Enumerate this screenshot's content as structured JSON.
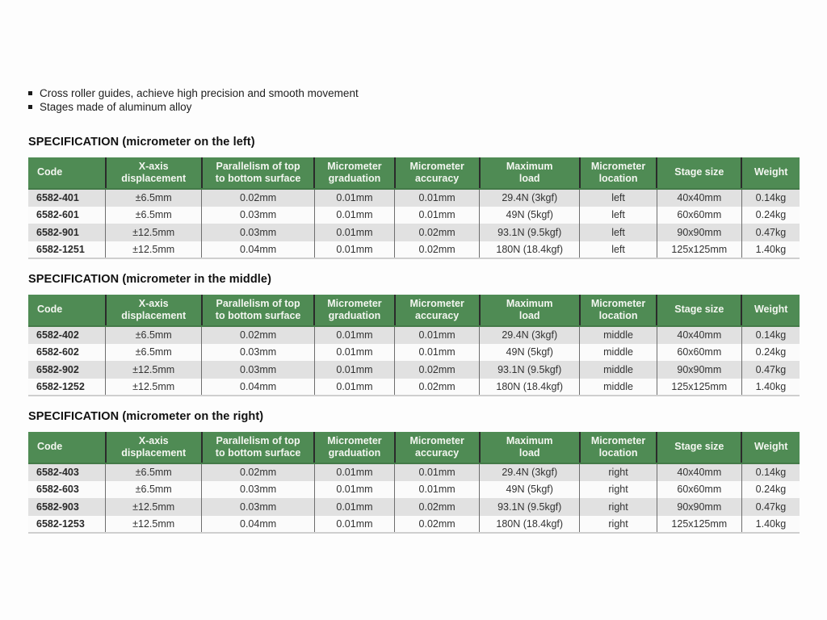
{
  "bullets": [
    "Cross roller guides, achieve high precision and smooth movement",
    "Stages made of aluminum alloy"
  ],
  "table_headers": [
    "Code",
    "X-axis\ndisplacement",
    "Parallelism of top\nto bottom surface",
    "Micrometer\ngraduation",
    "Micrometer\naccuracy",
    "Maximum\nload",
    "Micrometer\nlocation",
    "Stage size",
    "Weight"
  ],
  "colors": {
    "header_green": "#4f8b54",
    "header_separator": "#2b2b2b",
    "row_stripe_gray": "#e1e1e1",
    "row_white": "#fbfbfb",
    "cell_separator": "#6e6e6e"
  },
  "sections": [
    {
      "title": "SPECIFICATION (micrometer on the left)",
      "rows": [
        [
          "6582-401",
          "±6.5mm",
          "0.02mm",
          "0.01mm",
          "0.01mm",
          "29.4N (3kgf)",
          "left",
          "40x40mm",
          "0.14kg"
        ],
        [
          "6582-601",
          "±6.5mm",
          "0.03mm",
          "0.01mm",
          "0.01mm",
          "49N (5kgf)",
          "left",
          "60x60mm",
          "0.24kg"
        ],
        [
          "6582-901",
          "±12.5mm",
          "0.03mm",
          "0.01mm",
          "0.02mm",
          "93.1N (9.5kgf)",
          "left",
          "90x90mm",
          "0.47kg"
        ],
        [
          "6582-1251",
          "±12.5mm",
          "0.04mm",
          "0.01mm",
          "0.02mm",
          "180N (18.4kgf)",
          "left",
          "125x125mm",
          "1.40kg"
        ]
      ]
    },
    {
      "title": "SPECIFICATION (micrometer in the middle)",
      "rows": [
        [
          "6582-402",
          "±6.5mm",
          "0.02mm",
          "0.01mm",
          "0.01mm",
          "29.4N (3kgf)",
          "middle",
          "40x40mm",
          "0.14kg"
        ],
        [
          "6582-602",
          "±6.5mm",
          "0.03mm",
          "0.01mm",
          "0.01mm",
          "49N (5kgf)",
          "middle",
          "60x60mm",
          "0.24kg"
        ],
        [
          "6582-902",
          "±12.5mm",
          "0.03mm",
          "0.01mm",
          "0.02mm",
          "93.1N (9.5kgf)",
          "middle",
          "90x90mm",
          "0.47kg"
        ],
        [
          "6582-1252",
          "±12.5mm",
          "0.04mm",
          "0.01mm",
          "0.02mm",
          "180N (18.4kgf)",
          "middle",
          "125x125mm",
          "1.40kg"
        ]
      ]
    },
    {
      "title": "SPECIFICATION (micrometer on the right)",
      "rows": [
        [
          "6582-403",
          "±6.5mm",
          "0.02mm",
          "0.01mm",
          "0.01mm",
          "29.4N (3kgf)",
          "right",
          "40x40mm",
          "0.14kg"
        ],
        [
          "6582-603",
          "±6.5mm",
          "0.03mm",
          "0.01mm",
          "0.01mm",
          "49N (5kgf)",
          "right",
          "60x60mm",
          "0.24kg"
        ],
        [
          "6582-903",
          "±12.5mm",
          "0.03mm",
          "0.01mm",
          "0.02mm",
          "93.1N (9.5kgf)",
          "right",
          "90x90mm",
          "0.47kg"
        ],
        [
          "6582-1253",
          "±12.5mm",
          "0.04mm",
          "0.01mm",
          "0.02mm",
          "180N (18.4kgf)",
          "right",
          "125x125mm",
          "1.40kg"
        ]
      ]
    }
  ]
}
